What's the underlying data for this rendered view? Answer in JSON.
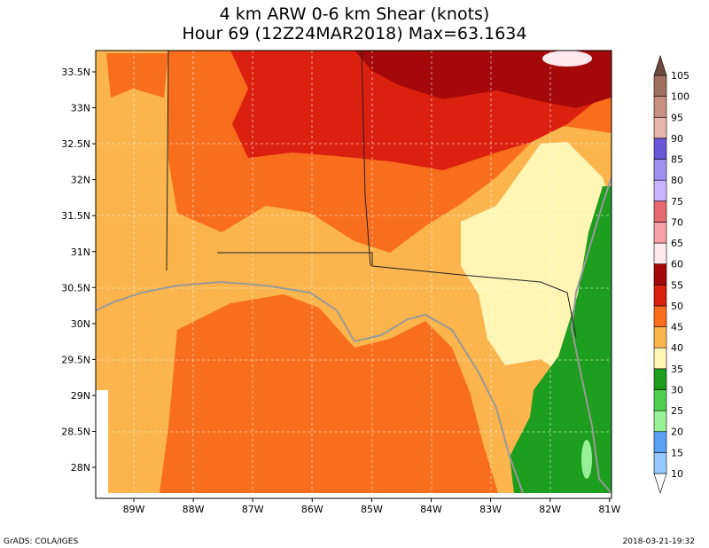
{
  "title": "4 km ARW 0-6 km Shear (knots)",
  "subtitle": "Hour 69 (12Z24MAR2018) Max=63.1634",
  "lat_labels": [
    "33.5N",
    "33N",
    "32.5N",
    "32N",
    "31.5N",
    "31N",
    "30.5N",
    "30N",
    "29.5N",
    "29N",
    "28.5N",
    "28N"
  ],
  "lon_labels": [
    "89W",
    "88W",
    "87W",
    "86W",
    "85W",
    "84W",
    "83W",
    "82W",
    "81W"
  ],
  "colorbar": {
    "levels": [
      10,
      15,
      20,
      25,
      30,
      35,
      40,
      45,
      50,
      55,
      60,
      65,
      70,
      75,
      80,
      85,
      90,
      95,
      100,
      105
    ],
    "colors": [
      "#ffffff",
      "#96c8ff",
      "#5aa0f5",
      "#96f096",
      "#50d050",
      "#1e9e1e",
      "#fff5b4",
      "#fcb44c",
      "#f86e1c",
      "#dc2010",
      "#a40808",
      "#ffe8ee",
      "#f8a0a8",
      "#e66a70",
      "#c8b4ff",
      "#a090f0",
      "#6858d8",
      "#e6b4aa",
      "#c89080",
      "#a07060",
      "#6e4a3c"
    ]
  },
  "footer_left": "GrADS: COLA/IGES",
  "footer_right": "2018-03-21-19:32"
}
